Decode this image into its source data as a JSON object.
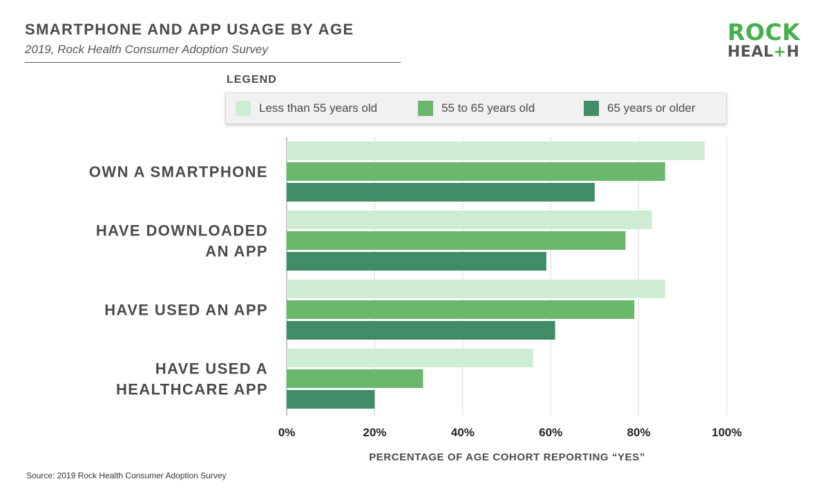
{
  "header": {
    "title": "SMARTPHONE AND APP USAGE BY AGE",
    "subtitle": "2019, Rock Health Consumer Adoption Survey"
  },
  "logo": {
    "line1": "ROCK",
    "line2_start": "HEAL",
    "line2_plus": "+",
    "line2_end": "H"
  },
  "legend": {
    "heading": "LEGEND"
  },
  "footer": {
    "source": "Source: 2019 Rock Health Consumer Adoption Survey"
  },
  "chart_data": {
    "type": "bar",
    "orientation": "horizontal",
    "title": "SMARTPHONE AND APP USAGE BY AGE",
    "subtitle": "2019, Rock Health Consumer Adoption Survey",
    "xlabel": "PERCENTAGE OF AGE COHORT REPORTING “YES”",
    "ylabel": "",
    "xlim": [
      0,
      100
    ],
    "x_ticks": [
      0,
      20,
      40,
      60,
      80,
      100
    ],
    "x_tick_labels": [
      "0%",
      "20%",
      "40%",
      "60%",
      "80%",
      "100%"
    ],
    "grid": "vertical",
    "legend_position": "top",
    "categories": [
      [
        "OWN A SMARTPHONE"
      ],
      [
        "HAVE DOWNLOADED",
        "AN APP"
      ],
      [
        "HAVE USED AN APP"
      ],
      [
        "HAVE USED A",
        "HEALTHCARE APP"
      ]
    ],
    "series": [
      {
        "name": "Less than 55 years old",
        "color": "#ceecd4",
        "values": [
          95,
          83,
          86,
          56
        ]
      },
      {
        "name": "55 to 65 years old",
        "color": "#6bb86c",
        "values": [
          86,
          77,
          79,
          31
        ]
      },
      {
        "name": "65 years or older",
        "color": "#3f8c66",
        "values": [
          70,
          59,
          61,
          20
        ]
      }
    ]
  }
}
